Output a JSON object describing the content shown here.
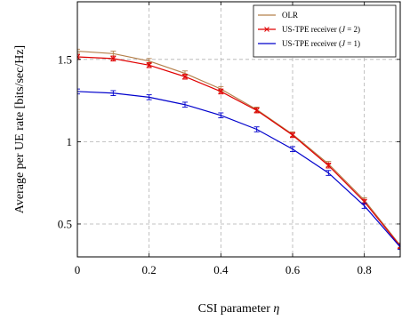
{
  "chart_data": {
    "type": "line",
    "xlabel": "CSI parameter η",
    "ylabel": "Average per UE rate [bits/sec/Hz]",
    "xlim": [
      0,
      0.9
    ],
    "ylim": [
      0.3,
      1.85
    ],
    "xticks": [
      0,
      0.2,
      0.4,
      0.6,
      0.8
    ],
    "xtick_labels": [
      "0",
      "0.2",
      "0.4",
      "0.6",
      "0.8"
    ],
    "yticks": [
      0.5,
      1,
      1.5
    ],
    "ytick_labels": [
      "0.5",
      "1",
      "1.5"
    ],
    "grid": true,
    "legend_position": "top-right",
    "x": [
      0,
      0.1,
      0.2,
      0.3,
      0.4,
      0.5,
      0.6,
      0.7,
      0.8,
      0.9
    ],
    "series": [
      {
        "name": "OLR",
        "color": "#b5804b",
        "marker": "none",
        "values": [
          1.55,
          1.535,
          1.49,
          1.415,
          1.32,
          1.195,
          1.045,
          0.865,
          0.645,
          0.37
        ],
        "errors": [
          0.012,
          0.015,
          0.015,
          0.015,
          0.015,
          0.015,
          0.015,
          0.015,
          0.015,
          0.015
        ]
      },
      {
        "name": "US-TPE receiver (J = 2)",
        "name_parts": [
          "US-TPE receiver (",
          "J",
          " = 2)"
        ],
        "color": "#e00000",
        "marker": "x",
        "values": [
          1.515,
          1.505,
          1.465,
          1.395,
          1.305,
          1.19,
          1.04,
          0.855,
          0.635,
          0.365
        ],
        "errors": [
          0.015,
          0.015,
          0.015,
          0.015,
          0.015,
          0.015,
          0.015,
          0.015,
          0.015,
          0.015
        ]
      },
      {
        "name": "US-TPE receiver (J = 1)",
        "name_parts": [
          "US-TPE receiver (",
          "J",
          " = 1)"
        ],
        "color": "#0000cc",
        "marker": "none",
        "values": [
          1.305,
          1.295,
          1.27,
          1.225,
          1.16,
          1.075,
          0.955,
          0.81,
          0.61,
          0.36
        ],
        "errors": [
          0.015,
          0.015,
          0.015,
          0.015,
          0.015,
          0.015,
          0.015,
          0.015,
          0.015,
          0.015
        ]
      }
    ]
  }
}
